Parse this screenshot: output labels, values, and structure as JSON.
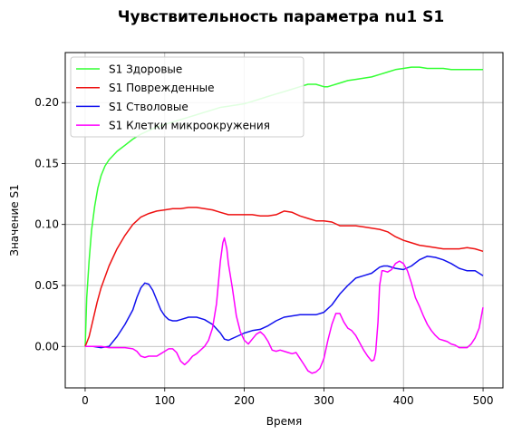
{
  "chart_data": {
    "type": "line",
    "title": "Чувствительность параметра nu1 S1",
    "xlabel": "Время",
    "ylabel": "Значение S1",
    "xlim": [
      -25,
      525
    ],
    "ylim": [
      -0.034,
      0.241
    ],
    "xticks": [
      0,
      100,
      200,
      300,
      400,
      500
    ],
    "yticks": [
      0.0,
      0.05,
      0.1,
      0.15,
      0.2
    ],
    "xtick_labels": [
      "0",
      "100",
      "200",
      "300",
      "400",
      "500"
    ],
    "ytick_labels": [
      "0.00",
      "0.05",
      "0.10",
      "0.15",
      "0.20"
    ],
    "grid": true,
    "legend_position": "top-left",
    "series": [
      {
        "name": "S1 Здоровые",
        "color": "#33ff33",
        "x": [
          0,
          2,
          5,
          8,
          12,
          16,
          20,
          25,
          30,
          40,
          50,
          60,
          70,
          80,
          90,
          100,
          110,
          120,
          130,
          140,
          150,
          160,
          170,
          180,
          190,
          200,
          210,
          220,
          230,
          240,
          250,
          260,
          270,
          280,
          290,
          300,
          305,
          310,
          320,
          330,
          340,
          350,
          360,
          370,
          380,
          390,
          400,
          410,
          420,
          430,
          440,
          450,
          460,
          470,
          480,
          490,
          500
        ],
        "y": [
          0.0,
          0.04,
          0.07,
          0.095,
          0.115,
          0.13,
          0.14,
          0.148,
          0.153,
          0.16,
          0.165,
          0.17,
          0.174,
          0.177,
          0.18,
          0.182,
          0.184,
          0.186,
          0.188,
          0.19,
          0.192,
          0.194,
          0.196,
          0.197,
          0.198,
          0.199,
          0.201,
          0.203,
          0.205,
          0.207,
          0.209,
          0.211,
          0.213,
          0.215,
          0.215,
          0.213,
          0.213,
          0.214,
          0.216,
          0.218,
          0.219,
          0.22,
          0.221,
          0.223,
          0.225,
          0.227,
          0.228,
          0.229,
          0.229,
          0.228,
          0.228,
          0.228,
          0.227,
          0.227,
          0.227,
          0.227,
          0.227
        ]
      },
      {
        "name": "S1 Поврежденные",
        "color": "#ee1111",
        "x": [
          0,
          5,
          10,
          15,
          20,
          30,
          40,
          50,
          60,
          70,
          80,
          90,
          100,
          110,
          120,
          130,
          140,
          150,
          160,
          170,
          180,
          190,
          200,
          210,
          220,
          230,
          240,
          250,
          260,
          270,
          280,
          290,
          300,
          310,
          320,
          330,
          340,
          350,
          360,
          370,
          380,
          390,
          400,
          410,
          420,
          430,
          440,
          450,
          460,
          470,
          480,
          490,
          500
        ],
        "y": [
          0.0,
          0.008,
          0.022,
          0.036,
          0.048,
          0.066,
          0.08,
          0.091,
          0.1,
          0.106,
          0.109,
          0.111,
          0.112,
          0.113,
          0.113,
          0.114,
          0.114,
          0.113,
          0.112,
          0.11,
          0.108,
          0.108,
          0.108,
          0.108,
          0.107,
          0.107,
          0.108,
          0.111,
          0.11,
          0.107,
          0.105,
          0.103,
          0.103,
          0.102,
          0.099,
          0.099,
          0.099,
          0.098,
          0.097,
          0.096,
          0.094,
          0.09,
          0.087,
          0.085,
          0.083,
          0.082,
          0.081,
          0.08,
          0.08,
          0.08,
          0.081,
          0.08,
          0.078
        ]
      },
      {
        "name": "S1 Стволовые",
        "color": "#1111ee",
        "x": [
          0,
          10,
          20,
          30,
          40,
          50,
          60,
          65,
          70,
          75,
          80,
          85,
          90,
          95,
          100,
          105,
          110,
          115,
          120,
          130,
          140,
          150,
          160,
          170,
          175,
          180,
          190,
          200,
          210,
          220,
          230,
          240,
          250,
          260,
          270,
          280,
          290,
          300,
          310,
          320,
          330,
          340,
          350,
          360,
          370,
          375,
          380,
          390,
          400,
          410,
          420,
          430,
          440,
          450,
          460,
          470,
          480,
          490,
          500
        ],
        "y": [
          0.0,
          0.0,
          -0.001,
          0.0,
          0.008,
          0.018,
          0.03,
          0.04,
          0.048,
          0.052,
          0.051,
          0.046,
          0.038,
          0.03,
          0.025,
          0.022,
          0.021,
          0.021,
          0.022,
          0.024,
          0.024,
          0.022,
          0.018,
          0.011,
          0.006,
          0.005,
          0.008,
          0.011,
          0.013,
          0.014,
          0.017,
          0.021,
          0.024,
          0.025,
          0.026,
          0.026,
          0.026,
          0.028,
          0.034,
          0.043,
          0.05,
          0.056,
          0.058,
          0.06,
          0.065,
          0.066,
          0.066,
          0.064,
          0.063,
          0.066,
          0.071,
          0.074,
          0.073,
          0.071,
          0.068,
          0.064,
          0.062,
          0.062,
          0.058
        ]
      },
      {
        "name": "S1 Клетки микроокружения",
        "color": "#ff00ff",
        "x": [
          0,
          10,
          20,
          30,
          40,
          50,
          60,
          65,
          70,
          75,
          80,
          90,
          95,
          100,
          105,
          110,
          115,
          120,
          125,
          130,
          135,
          140,
          145,
          150,
          155,
          160,
          165,
          170,
          173,
          175,
          178,
          180,
          185,
          190,
          195,
          200,
          205,
          210,
          215,
          220,
          225,
          230,
          235,
          240,
          245,
          250,
          255,
          260,
          265,
          270,
          275,
          280,
          285,
          290,
          295,
          300,
          305,
          310,
          315,
          320,
          325,
          330,
          335,
          340,
          345,
          350,
          355,
          360,
          363,
          365,
          368,
          370,
          373,
          375,
          380,
          385,
          390,
          395,
          400,
          405,
          410,
          415,
          420,
          425,
          430,
          435,
          440,
          445,
          450,
          455,
          460,
          465,
          470,
          475,
          480,
          485,
          490,
          495,
          500
        ],
        "y": [
          0.0,
          0.0,
          0.0,
          -0.001,
          -0.001,
          -0.001,
          -0.002,
          -0.004,
          -0.008,
          -0.009,
          -0.008,
          -0.008,
          -0.006,
          -0.004,
          -0.002,
          -0.002,
          -0.005,
          -0.012,
          -0.015,
          -0.012,
          -0.008,
          -0.006,
          -0.003,
          0.0,
          0.005,
          0.015,
          0.035,
          0.07,
          0.085,
          0.089,
          0.08,
          0.068,
          0.048,
          0.025,
          0.012,
          0.005,
          0.002,
          0.006,
          0.01,
          0.012,
          0.009,
          0.004,
          -0.003,
          -0.004,
          -0.003,
          -0.004,
          -0.005,
          -0.006,
          -0.005,
          -0.01,
          -0.015,
          -0.02,
          -0.022,
          -0.021,
          -0.018,
          -0.01,
          0.005,
          0.018,
          0.027,
          0.027,
          0.02,
          0.015,
          0.013,
          0.009,
          0.003,
          -0.003,
          -0.008,
          -0.012,
          -0.011,
          -0.005,
          0.02,
          0.05,
          0.062,
          0.062,
          0.061,
          0.063,
          0.068,
          0.07,
          0.068,
          0.062,
          0.052,
          0.04,
          0.033,
          0.025,
          0.018,
          0.013,
          0.009,
          0.006,
          0.005,
          0.004,
          0.002,
          0.001,
          -0.001,
          -0.001,
          -0.001,
          0.002,
          0.007,
          0.015,
          0.032
        ]
      }
    ]
  }
}
